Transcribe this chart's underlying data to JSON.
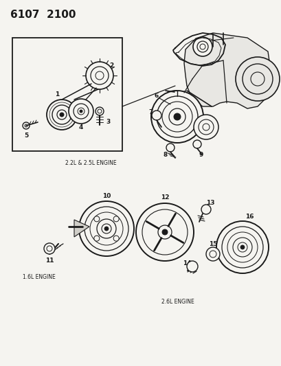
{
  "title": "6107  2100",
  "bg_color": "#f5f4f0",
  "line_color": "#1a1a1a",
  "text_color": "#1a1a1a",
  "label_22_25": "2.2L & 2.5L ENGINE",
  "label_16": "1.6L ENGINE",
  "label_26": "2.6L ENGINE",
  "fig_w": 4.1,
  "fig_h": 5.33,
  "dpi": 100
}
